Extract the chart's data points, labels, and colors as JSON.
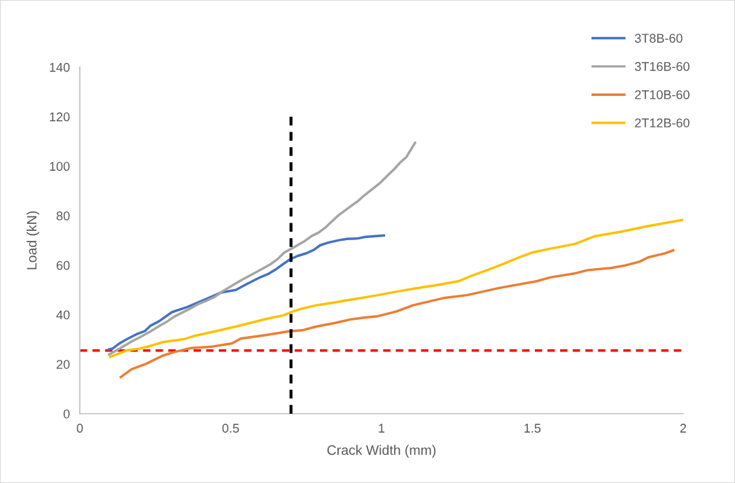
{
  "chart_data": {
    "type": "line",
    "xlabel": "Crack Width (mm)",
    "ylabel": "Load (kN)",
    "xlim": [
      0,
      2
    ],
    "xticks": [
      0,
      0.5,
      1,
      1.5,
      2
    ],
    "ylim": [
      0,
      140
    ],
    "yticks": [
      0,
      20,
      40,
      60,
      80,
      100,
      120,
      140
    ],
    "grid": false,
    "legend": "top right",
    "marker": "none",
    "line_style": "solid",
    "series": [
      {
        "name": "3T8B-60",
        "color": "#4472c4",
        "x": [
          0.097,
          0.109,
          0.129,
          0.156,
          0.188,
          0.215,
          0.235,
          0.262,
          0.305,
          0.356,
          0.415,
          0.47,
          0.517,
          0.549,
          0.596,
          0.627,
          0.651,
          0.678,
          0.698,
          0.721,
          0.753,
          0.776,
          0.796,
          0.823,
          0.859,
          0.886,
          0.922,
          0.945,
          1.008
        ],
        "values": [
          26.0,
          26.3,
          28.2,
          30.1,
          32.1,
          33.3,
          35.6,
          37.3,
          41.0,
          43.1,
          46.1,
          49.0,
          50.0,
          52.1,
          55.0,
          56.6,
          58.4,
          60.8,
          62.4,
          63.7,
          64.9,
          66.2,
          68.0,
          69.1,
          70.1,
          70.6,
          70.8,
          71.4,
          72.0
        ]
      },
      {
        "name": "3T16B-60",
        "color": "#a5a5a5",
        "x": [
          0.097,
          0.125,
          0.172,
          0.195,
          0.231,
          0.266,
          0.289,
          0.313,
          0.36,
          0.391,
          0.423,
          0.446,
          0.478,
          0.533,
          0.588,
          0.631,
          0.655,
          0.678,
          0.702,
          0.741,
          0.769,
          0.792,
          0.816,
          0.855,
          0.89,
          0.922,
          0.941,
          0.996,
          1.02,
          1.043,
          1.063,
          1.082,
          1.111
        ],
        "values": [
          23.9,
          25.8,
          29.2,
          30.6,
          33.0,
          35.6,
          37.2,
          39.2,
          42.1,
          44.2,
          45.8,
          47.1,
          49.8,
          53.8,
          57.4,
          60.3,
          62.4,
          65.1,
          66.7,
          69.4,
          71.8,
          73.2,
          75.4,
          79.9,
          83.1,
          85.9,
          88.0,
          93.3,
          96.2,
          98.9,
          101.6,
          103.6,
          109.4
        ]
      },
      {
        "name": "2T10B-60",
        "color": "#ed7d31",
        "x": [
          0.136,
          0.172,
          0.219,
          0.274,
          0.313,
          0.368,
          0.439,
          0.505,
          0.533,
          0.619,
          0.69,
          0.737,
          0.784,
          0.847,
          0.894,
          0.941,
          0.988,
          1.05,
          1.104,
          1.205,
          1.283,
          1.39,
          1.514,
          1.561,
          1.638,
          1.684,
          1.762,
          1.808,
          1.855,
          1.885,
          1.94,
          1.967
        ],
        "values": [
          14.8,
          18.0,
          20.1,
          23.4,
          24.9,
          26.5,
          27.1,
          28.4,
          30.3,
          31.8,
          33.2,
          33.7,
          35.2,
          36.7,
          38.0,
          38.8,
          39.4,
          41.3,
          43.8,
          46.7,
          47.9,
          50.8,
          53.5,
          55.1,
          56.6,
          58.0,
          58.9,
          59.9,
          61.4,
          63.2,
          64.8,
          66.0
        ]
      },
      {
        "name": "2T12B-60",
        "color": "#ffc000",
        "x": [
          0.101,
          0.125,
          0.156,
          0.195,
          0.223,
          0.274,
          0.344,
          0.376,
          0.439,
          0.517,
          0.564,
          0.619,
          0.674,
          0.702,
          0.737,
          0.784,
          0.831,
          0.91,
          0.988,
          1.05,
          1.112,
          1.19,
          1.255,
          1.298,
          1.352,
          1.406,
          1.453,
          1.499,
          1.561,
          1.642,
          1.704,
          1.797,
          1.871,
          1.948,
          2.0
        ],
        "values": [
          23.0,
          24.1,
          25.6,
          26.2,
          27.0,
          28.9,
          30.1,
          31.3,
          33.0,
          35.2,
          36.6,
          38.3,
          39.7,
          41.1,
          42.5,
          43.8,
          44.7,
          46.3,
          47.9,
          49.3,
          50.6,
          52.1,
          53.5,
          55.7,
          58.1,
          60.6,
          63.0,
          65.1,
          66.7,
          68.6,
          71.6,
          73.6,
          75.5,
          77.2,
          78.3
        ]
      },
      {
        "color": "#000000",
        "line_style": "dashed",
        "x": [
          0.7,
          0.7
        ],
        "values": [
          0,
          120
        ]
      }
    ],
    "ref_lines": [
      {
        "axis": "y",
        "value": 25.5,
        "color": "#ff0000",
        "line_style": "dashed"
      }
    ]
  }
}
